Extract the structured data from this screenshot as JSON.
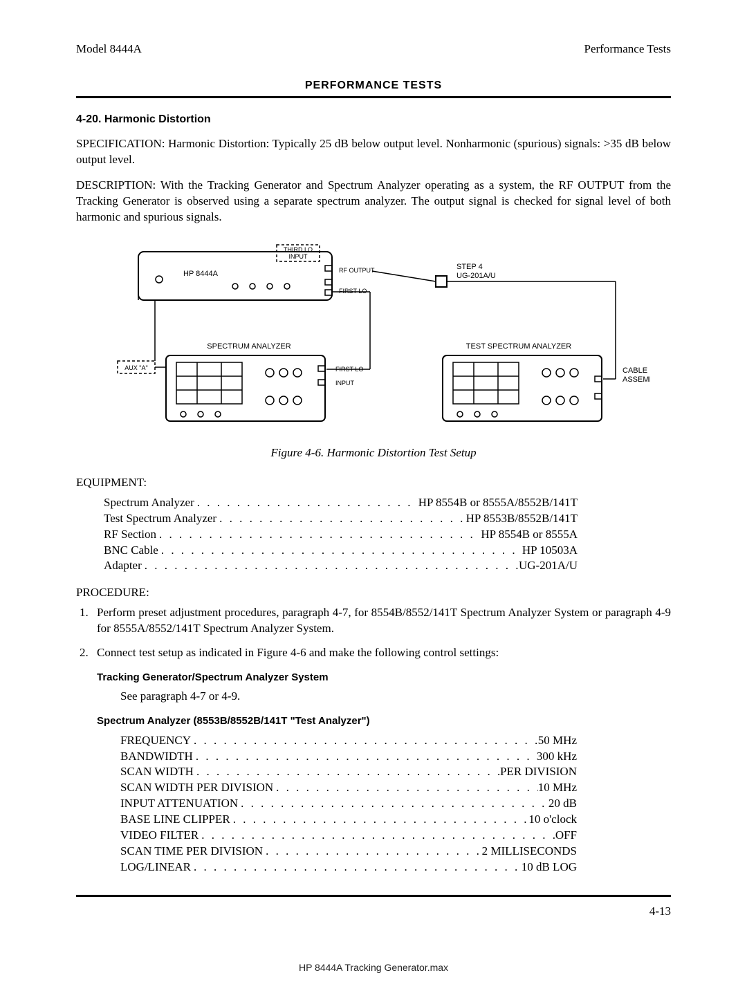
{
  "header": {
    "left": "Model 8444A",
    "right": "Performance Tests",
    "center_title": "PERFORMANCE TESTS"
  },
  "section": {
    "num_title": "4-20. Harmonic Distortion",
    "spec": "SPECIFICATION: Harmonic Distortion: Typically 25 dB below output level. Nonharmonic (spurious) signals: >35 dB below output level.",
    "desc": "DESCRIPTION: With the Tracking Generator and Spectrum Analyzer operating as a system, the RF OUTPUT from the Tracking Generator is observed using a separate spectrum analyzer. The output signal is checked for signal level of both harmonic and spurious signals."
  },
  "figure": {
    "caption": "Figure 4-6.  Harmonic Distortion Test Setup",
    "labels": {
      "hp8444a": "HP 8444A",
      "third_lo": "THIRD LO",
      "input": "INPUT",
      "rf_output": "RF OUTPUT",
      "first_lo": "FIRST LO",
      "step4": "STEP 4",
      "ug201": "UG-201A/U",
      "aux_a": "AUX \"A\"",
      "spectrum_analyzer": "SPECTRUM ANALYZER",
      "test_spectrum_analyzer": "TEST SPECTRUM ANALYZER",
      "first_lo2": "FIRST LO",
      "input2": "INPUT",
      "cable_assembly": "CABLE\nASSEMBLY"
    }
  },
  "equipment_label": "EQUIPMENT:",
  "equipment": [
    {
      "name": "Spectrum Analyzer",
      "value": "HP 8554B or 8555A/8552B/141T"
    },
    {
      "name": "Test Spectrum Analyzer",
      "value": "HP 8553B/8552B/141T"
    },
    {
      "name": "RF Section",
      "value": "HP 8554B or 8555A"
    },
    {
      "name": "BNC Cable",
      "value": "HP 10503A"
    },
    {
      "name": "Adapter",
      "value": "UG-201A/U"
    }
  ],
  "procedure_label": "PROCEDURE:",
  "procedure": [
    "Perform preset adjustment procedures, paragraph 4-7, for 8554B/8552/141T Spectrum Analyzer System or paragraph 4-9 for 8555A/8552/141T Spectrum Analyzer System.",
    "Connect test setup as indicated in Figure 4-6 and make the following control settings:"
  ],
  "tg_system_title": "Tracking Generator/Spectrum Analyzer System",
  "tg_system_text": "See paragraph 4-7 or 4-9.",
  "test_analyzer_title": "Spectrum Analyzer (8553B/8552B/141T \"Test Analyzer\")",
  "settings": [
    {
      "name": "FREQUENCY",
      "value": "50 MHz"
    },
    {
      "name": "BANDWIDTH",
      "value": "300 kHz"
    },
    {
      "name": "SCAN WIDTH",
      "value": "PER DIVISION"
    },
    {
      "name": "SCAN WIDTH PER DIVISION",
      "value": "10 MHz"
    },
    {
      "name": "INPUT ATTENUATION",
      "value": "20 dB"
    },
    {
      "name": "BASE LINE CLIPPER",
      "value": "10 o'clock"
    },
    {
      "name": "VIDEO FILTER",
      "value": "OFF"
    },
    {
      "name": "SCAN TIME PER DIVISION",
      "value": "2 MILLISECONDS"
    },
    {
      "name": "LOG/LINEAR",
      "value": "10 dB LOG"
    }
  ],
  "page_number": "4-13",
  "bottom_text": "HP 8444A Tracking Generator.max"
}
